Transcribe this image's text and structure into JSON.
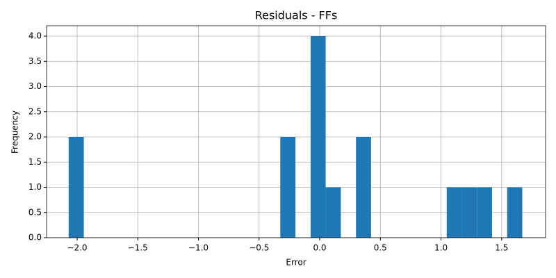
{
  "chart_data": {
    "type": "histogram",
    "title": "Residuals - FFs",
    "xlabel": "Error",
    "ylabel": "Frequency",
    "bins": [
      -2.07,
      -1.945,
      -1.821,
      -1.696,
      -1.571,
      -1.447,
      -1.322,
      -1.197,
      -1.073,
      -0.948,
      -0.823,
      -0.699,
      -0.574,
      -0.449,
      -0.325,
      -0.2,
      -0.075,
      0.049,
      0.174,
      0.299,
      0.423,
      0.548,
      0.673,
      0.797,
      0.922,
      1.047,
      1.171,
      1.296,
      1.421,
      1.545,
      1.67
    ],
    "counts": [
      2,
      0,
      0,
      0,
      0,
      0,
      0,
      0,
      0,
      0,
      0,
      0,
      0,
      0,
      2,
      0,
      4,
      1,
      0,
      2,
      0,
      0,
      0,
      0,
      0,
      1,
      1,
      1,
      0,
      1
    ],
    "color": "#1f77b4",
    "xlim": [
      -2.252,
      1.862
    ],
    "xticks": [
      {
        "value": -2.0,
        "label": "−2.0"
      },
      {
        "value": -1.5,
        "label": "−1.5"
      },
      {
        "value": -1.0,
        "label": "−1.0"
      },
      {
        "value": -0.5,
        "label": "−0.5"
      },
      {
        "value": 0.0,
        "label": "0.0"
      },
      {
        "value": 0.5,
        "label": "0.5"
      },
      {
        "value": 1.0,
        "label": "1.0"
      },
      {
        "value": 1.5,
        "label": "1.5"
      }
    ],
    "ylim": [
      0,
      4.207
    ],
    "yticks": [
      {
        "value": 0,
        "label": "0.0"
      },
      {
        "value": 0.5,
        "label": "0.5"
      },
      {
        "value": 1,
        "label": "1.0"
      },
      {
        "value": 1.5,
        "label": "1.5"
      },
      {
        "value": 2,
        "label": "2.0"
      },
      {
        "value": 2.5,
        "label": "2.5"
      },
      {
        "value": 3,
        "label": "3.0"
      },
      {
        "value": 3.5,
        "label": "3.5"
      },
      {
        "value": 4,
        "label": "4.0"
      }
    ],
    "grid": true
  }
}
